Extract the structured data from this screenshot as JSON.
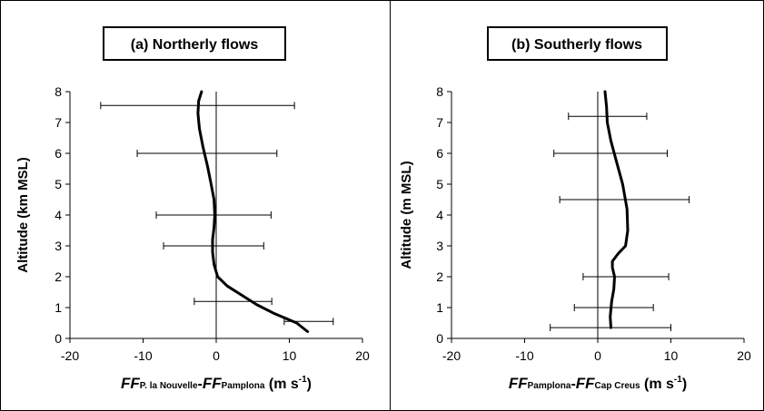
{
  "chart_data": [
    {
      "type": "line",
      "title": "(a) Northerly flows",
      "ylabel": "Altitude (km MSL)",
      "xlabel": {
        "parts": [
          {
            "text": "FF",
            "style": "italic-big"
          },
          {
            "text": "P. la Nouvelle",
            "style": "sub"
          },
          {
            "text": "-",
            "style": "big"
          },
          {
            "text": "FF",
            "style": "italic-big"
          },
          {
            "text": "Pamplona",
            "style": "sub"
          },
          {
            "text": " (m s",
            "style": "big"
          },
          {
            "text": "-1",
            "style": "sup"
          },
          {
            "text": ")",
            "style": "big"
          }
        ]
      },
      "xlim": [
        -20,
        20
      ],
      "ylim": [
        0,
        8
      ],
      "xticks": [
        "-20",
        "-10",
        "0",
        "10",
        "20"
      ],
      "yticks": [
        "0",
        "1",
        "2",
        "3",
        "4",
        "5",
        "6",
        "7",
        "8"
      ],
      "grid": false,
      "reference_line_x": 0,
      "series": [
        {
          "x": [
            12.5,
            11,
            8,
            5.5,
            3.5,
            1.5,
            0.2,
            -0.3,
            -0.5,
            -0.5,
            -0.3,
            -0.2,
            -0.3,
            -0.7,
            -1.2,
            -1.8,
            -2.3,
            -2.5,
            -2.4,
            -2
          ],
          "y": [
            0.22,
            0.5,
            0.8,
            1.1,
            1.4,
            1.7,
            2.0,
            2.4,
            2.8,
            3.2,
            3.6,
            4.0,
            4.5,
            5.0,
            5.6,
            6.2,
            6.8,
            7.3,
            7.7,
            8.0
          ],
          "xerr_low": [],
          "xerr_high": []
        }
      ],
      "error_bars": [
        {
          "y": 0.55,
          "xmin": 9.3,
          "xmax": 16
        },
        {
          "y": 1.2,
          "xmin": -3,
          "xmax": 7.6
        },
        {
          "y": 3.0,
          "xmin": -7.2,
          "xmax": 6.5
        },
        {
          "y": 4.0,
          "xmin": -8.2,
          "xmax": 7.5
        },
        {
          "y": 6.0,
          "xmin": -10.8,
          "xmax": 8.3
        },
        {
          "y": 7.55,
          "xmin": -15.8,
          "xmax": 10.7
        }
      ]
    },
    {
      "type": "line",
      "title": "(b) Southerly flows",
      "ylabel": "Altitude (m MSL)",
      "xlabel": {
        "parts": [
          {
            "text": "FF",
            "style": "italic-big"
          },
          {
            "text": "Pamplona",
            "style": "sub"
          },
          {
            "text": "-",
            "style": "big"
          },
          {
            "text": "FF",
            "style": "italic-big"
          },
          {
            "text": "Cap Creus",
            "style": "sub"
          },
          {
            "text": " (m s",
            "style": "big"
          },
          {
            "text": "-1",
            "style": "sup"
          },
          {
            "text": ")",
            "style": "big"
          }
        ]
      },
      "xlim": [
        -20,
        20
      ],
      "ylim": [
        0,
        8
      ],
      "xticks": [
        "-20",
        "-10",
        "0",
        "10",
        "20"
      ],
      "yticks": [
        "0",
        "1",
        "2",
        "3",
        "4",
        "5",
        "6",
        "7",
        "8"
      ],
      "grid": false,
      "reference_line_x": 0,
      "series": [
        {
          "x": [
            1.8,
            1.7,
            1.9,
            2.2,
            2.3,
            2.0,
            2.0,
            2.8,
            3.8,
            4.1,
            4.0,
            3.4,
            2.6,
            1.8,
            1.3,
            1.2,
            1.0
          ],
          "y": [
            0.35,
            0.7,
            1.2,
            1.6,
            2.0,
            2.3,
            2.5,
            2.75,
            3.0,
            3.5,
            4.2,
            5.0,
            5.7,
            6.4,
            7.0,
            7.5,
            8.0
          ],
          "xerr_low": [],
          "xerr_high": []
        }
      ],
      "error_bars": [
        {
          "y": 0.35,
          "xmin": -6.5,
          "xmax": 10
        },
        {
          "y": 1.0,
          "xmin": -3.2,
          "xmax": 7.6
        },
        {
          "y": 2.0,
          "xmin": -2.0,
          "xmax": 9.7
        },
        {
          "y": 4.5,
          "xmin": -5.2,
          "xmax": 12.5
        },
        {
          "y": 6.0,
          "xmin": -6,
          "xmax": 9.5
        },
        {
          "y": 7.2,
          "xmin": -4,
          "xmax": 6.7
        }
      ]
    }
  ]
}
